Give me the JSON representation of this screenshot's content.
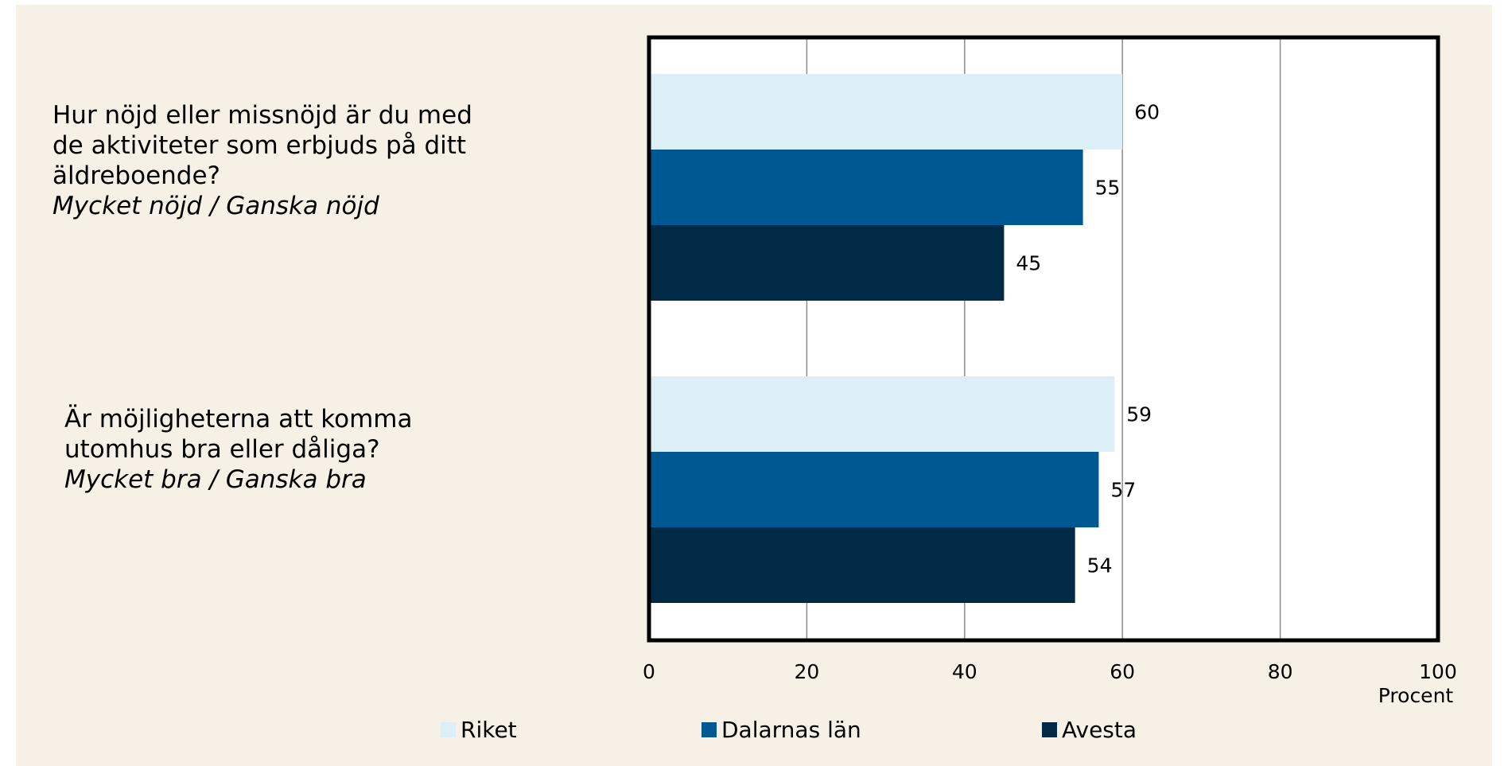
{
  "background": "#f7f0e6",
  "questions": [
    {
      "lines": [
        "Hur nöjd eller missnöjd är du med",
        "de aktiviteter som erbjuds på ditt",
        "äldreboende?"
      ],
      "sub": "Mycket nöjd / Ganska nöjd"
    },
    {
      "lines": [
        "Är möjligheterna att komma",
        "utomhus bra eller dåliga?"
      ],
      "sub": "Mycket bra / Ganska bra"
    }
  ],
  "chart_data": {
    "type": "bar",
    "orientation": "horizontal",
    "categories": [
      "Hur nöjd eller missnöjd är du med de aktiviteter som erbjuds på ditt äldreboende? Mycket nöjd / Ganska nöjd",
      "Är möjligheterna att komma utomhus bra eller dåliga? Mycket bra / Ganska bra"
    ],
    "series": [
      {
        "name": "Riket",
        "color": "#dceef6",
        "values": [
          60,
          59
        ]
      },
      {
        "name": "Dalarnas län",
        "color": "#005893",
        "values": [
          55,
          57
        ]
      },
      {
        "name": "Avesta",
        "color": "#002a45",
        "values": [
          45,
          54
        ]
      }
    ],
    "xlabel": "Procent",
    "xlim": [
      0,
      100
    ],
    "xticks": [
      0,
      20,
      40,
      60,
      80,
      100
    ],
    "grid": true,
    "legend_position": "bottom"
  }
}
